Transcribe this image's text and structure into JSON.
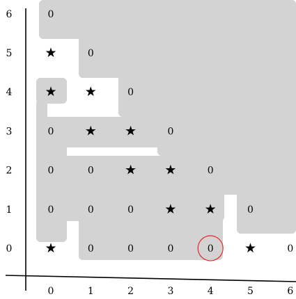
{
  "x_ticks": [
    "0",
    "1",
    "2",
    "3",
    "4",
    "5",
    "6"
  ],
  "y_ticks": [
    "0",
    "1",
    "2",
    "3",
    "4",
    "5",
    "6"
  ],
  "colors": {
    "shade": "#d3d3d3",
    "highlight": "#e8262b",
    "ink": "#000000"
  },
  "star_glyph": "★",
  "grid": [
    {
      "x": 0,
      "y": 6,
      "v": "0"
    },
    {
      "x": 0,
      "y": 5,
      "v": "★"
    },
    {
      "x": 1,
      "y": 5,
      "v": "0"
    },
    {
      "x": 0,
      "y": 4,
      "v": "★"
    },
    {
      "x": 1,
      "y": 4,
      "v": "★"
    },
    {
      "x": 2,
      "y": 4,
      "v": "0"
    },
    {
      "x": 0,
      "y": 3,
      "v": "0"
    },
    {
      "x": 1,
      "y": 3,
      "v": "★"
    },
    {
      "x": 2,
      "y": 3,
      "v": "★"
    },
    {
      "x": 3,
      "y": 3,
      "v": "0"
    },
    {
      "x": 0,
      "y": 2,
      "v": "0"
    },
    {
      "x": 1,
      "y": 2,
      "v": "0"
    },
    {
      "x": 2,
      "y": 2,
      "v": "★"
    },
    {
      "x": 3,
      "y": 2,
      "v": "★"
    },
    {
      "x": 4,
      "y": 2,
      "v": "0"
    },
    {
      "x": 0,
      "y": 1,
      "v": "0"
    },
    {
      "x": 1,
      "y": 1,
      "v": "0"
    },
    {
      "x": 2,
      "y": 1,
      "v": "0"
    },
    {
      "x": 3,
      "y": 1,
      "v": "★"
    },
    {
      "x": 4,
      "y": 1,
      "v": "★"
    },
    {
      "x": 5,
      "y": 1,
      "v": "0"
    },
    {
      "x": 0,
      "y": 0,
      "v": "★"
    },
    {
      "x": 1,
      "y": 0,
      "v": "0"
    },
    {
      "x": 2,
      "y": 0,
      "v": "0"
    },
    {
      "x": 3,
      "y": 0,
      "v": "0"
    },
    {
      "x": 4,
      "y": 0,
      "v": "0"
    },
    {
      "x": 5,
      "y": 0,
      "v": "★"
    },
    {
      "x": 6,
      "y": 0,
      "v": "0"
    }
  ],
  "highlighted_cell": {
    "x": 4,
    "y": 0
  }
}
